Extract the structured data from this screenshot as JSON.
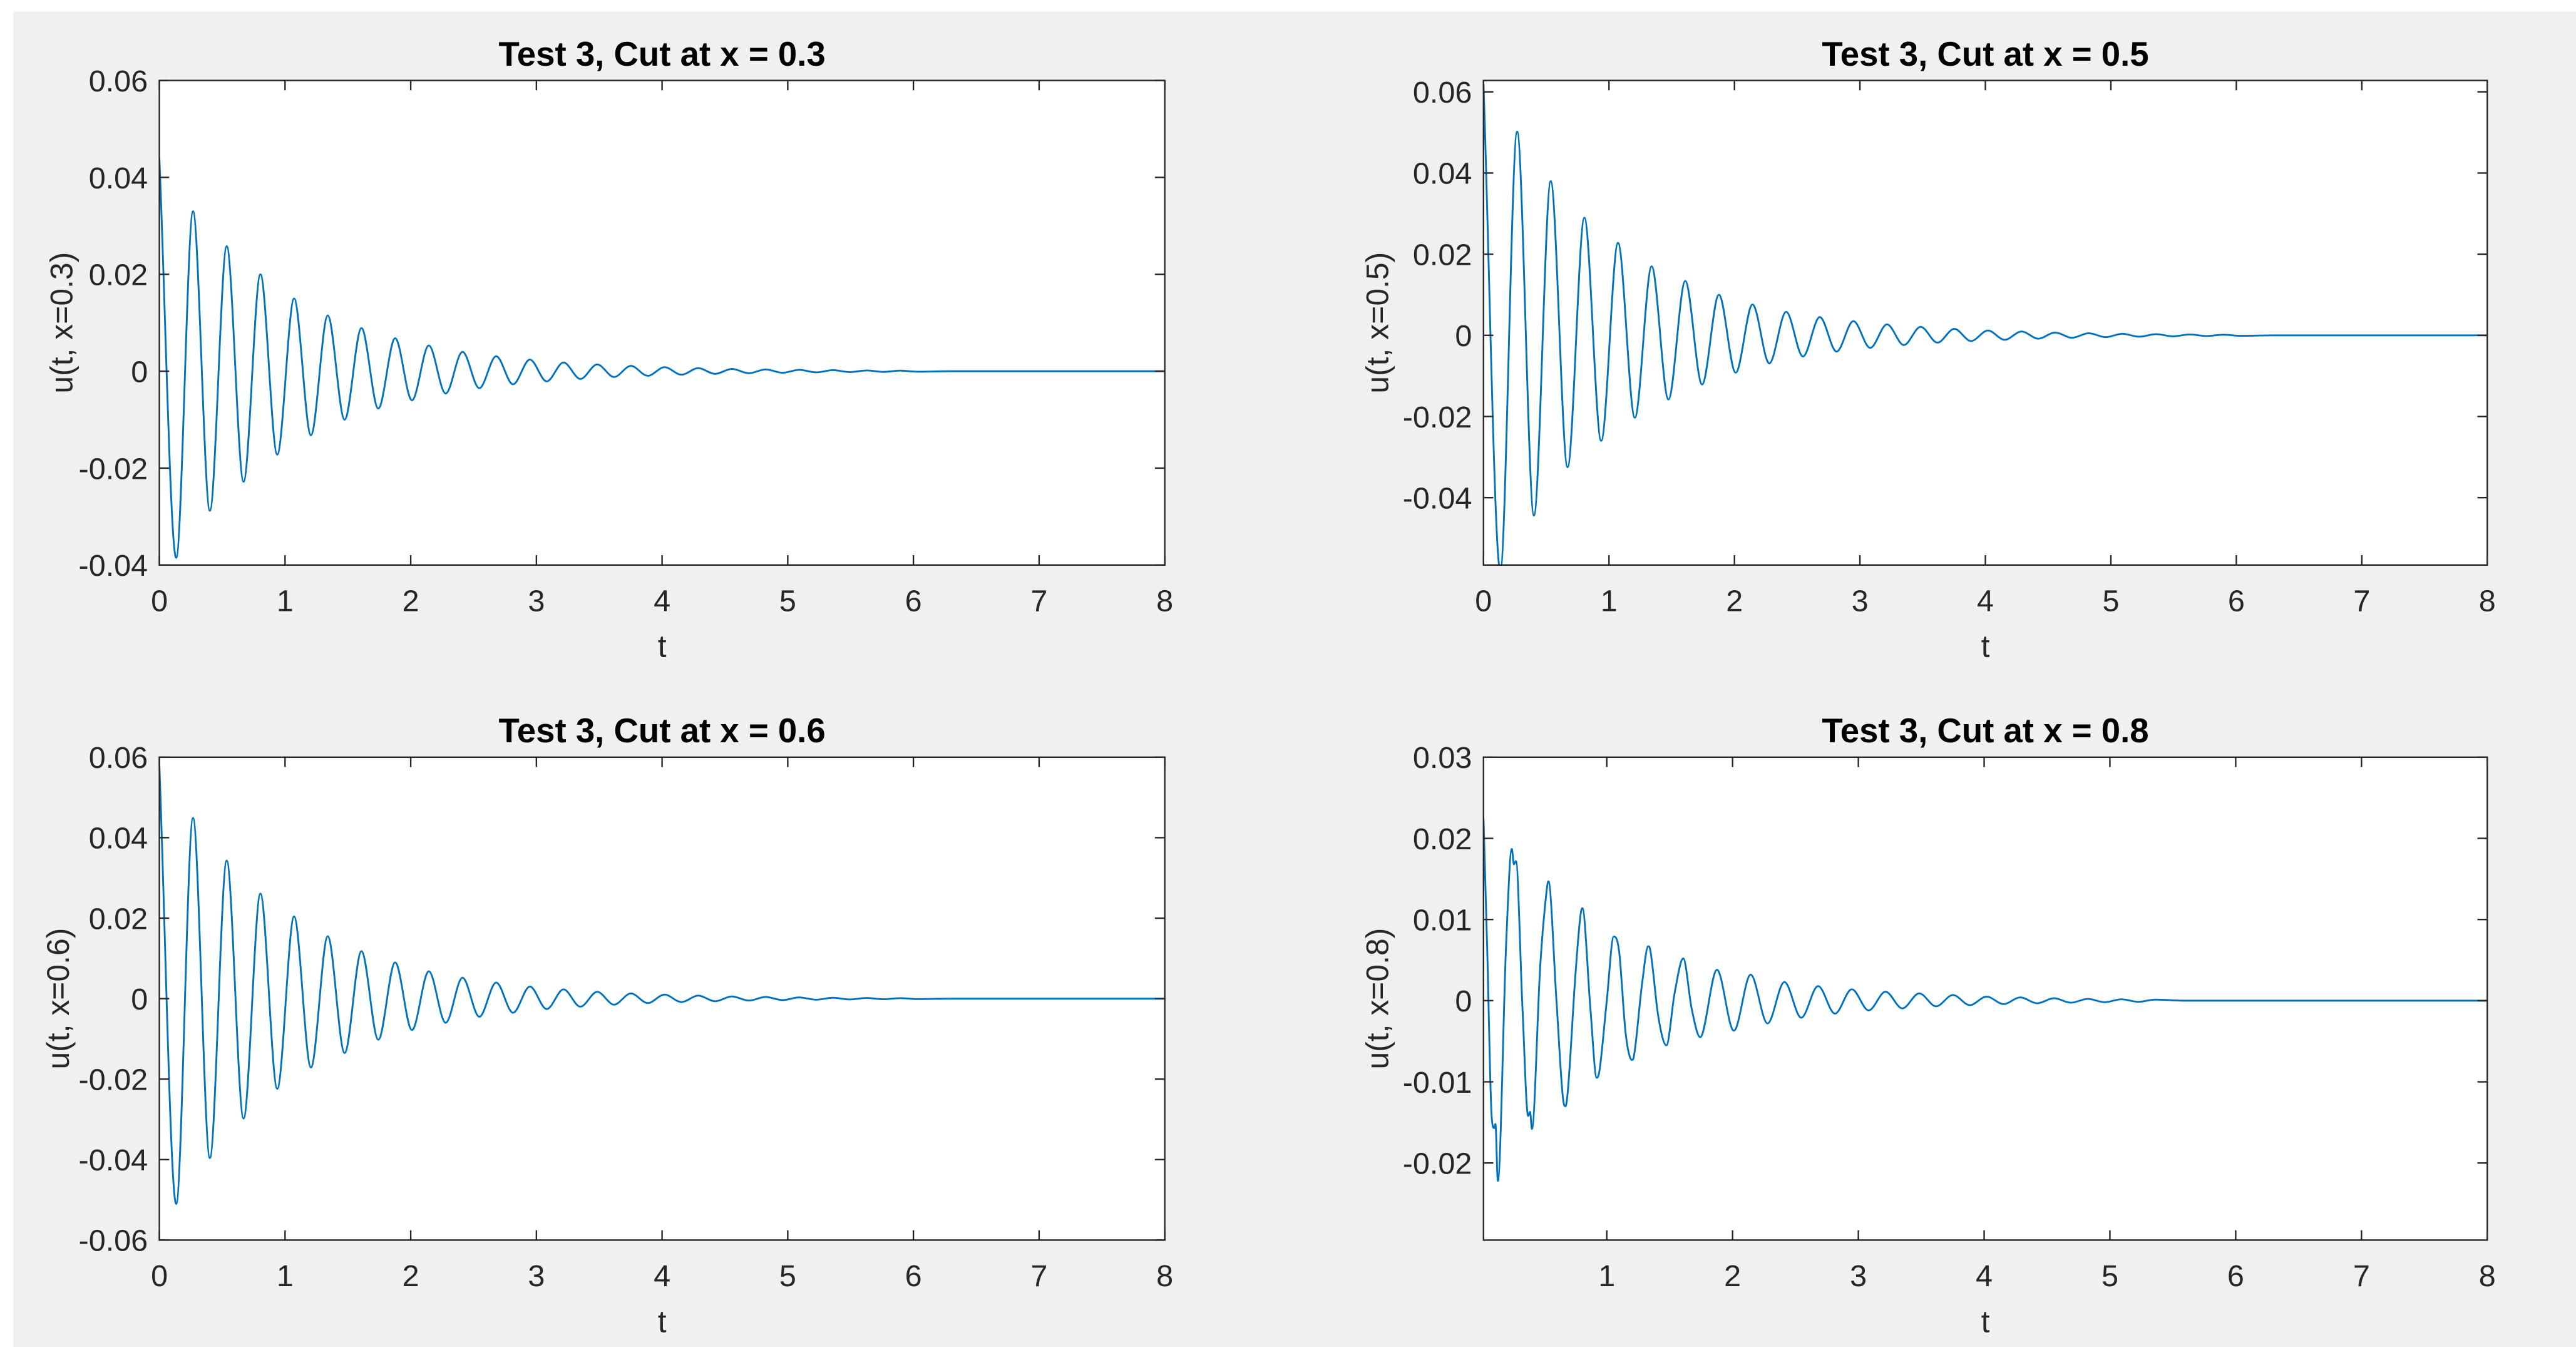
{
  "figure": {
    "background": "#f0f0f0",
    "axes_background": "#ffffff",
    "axes_color": "#262626"
  },
  "chart_data": [
    {
      "type": "line",
      "title": "Test 3, Cut at x = 0.3",
      "xlabel": "t",
      "ylabel": "u(t, x=0.3)",
      "xlim": [
        0,
        8
      ],
      "ylim": [
        -0.04,
        0.06
      ],
      "grid": false,
      "xticks": [
        0,
        1,
        2,
        3,
        4,
        5,
        6,
        7,
        8
      ],
      "xtick_labels": [
        "0",
        "1",
        "2",
        "3",
        "4",
        "5",
        "6",
        "7",
        "8"
      ],
      "yticks": [
        0.06,
        0.04,
        0.02,
        0,
        -0.02,
        -0.04
      ],
      "ytick_labels": [
        "0.06",
        "0.04",
        "0.02",
        "0",
        "-0.02",
        "-0.04"
      ],
      "series": [
        {
          "color": "#0072BD",
          "x": [
            0,
            0.134,
            0.268,
            0.402,
            0.536,
            0.67,
            0.804,
            0.938,
            1.072,
            1.206,
            1.34,
            1.474,
            1.608,
            1.742,
            1.876,
            2.01,
            2.144,
            2.278,
            2.412,
            2.546,
            2.68,
            2.814,
            2.948,
            3.082,
            3.216,
            3.35,
            3.484,
            3.618,
            3.752,
            3.886,
            4.02,
            4.154,
            4.288,
            4.422,
            4.556,
            4.69,
            4.824,
            4.958,
            5.092,
            5.226,
            5.36,
            5.494,
            5.628,
            5.762,
            5.896,
            6.03,
            6.3,
            8
          ],
          "y": [
            0.044,
            -0.0385,
            0.033,
            -0.0288,
            0.0258,
            -0.0228,
            0.02,
            -0.0172,
            0.015,
            -0.0132,
            0.0115,
            -0.01,
            0.0089,
            -0.0077,
            0.0068,
            -0.006,
            0.0053,
            -0.0046,
            0.004,
            -0.0035,
            0.0031,
            -0.0027,
            0.0024,
            -0.0021,
            0.0018,
            -0.0016,
            0.0014,
            -0.0012,
            0.0011,
            -0.00095,
            0.00083,
            -0.00072,
            0.00063,
            -0.00055,
            0.00048,
            -0.00042,
            0.00037,
            -0.00032,
            0.00028,
            -0.00024,
            0.00021,
            -0.00018,
            0.00016,
            -0.00014,
            0.00012,
            -0.0001,
            0,
            0
          ]
        }
      ]
    },
    {
      "type": "line",
      "title": "Test 3, Cut at x = 0.5",
      "xlabel": "t",
      "ylabel": "u(t, x=0.5)",
      "xlim": [
        0,
        8
      ],
      "ylim": [
        -0.0566,
        0.0628
      ],
      "grid": false,
      "xticks": [
        0,
        1,
        2,
        3,
        4,
        5,
        6,
        7,
        8
      ],
      "xtick_labels": [
        "0",
        "1",
        "2",
        "3",
        "4",
        "5",
        "6",
        "7",
        "8"
      ],
      "yticks": [
        0.06,
        0.04,
        0.02,
        0,
        -0.02,
        -0.04
      ],
      "ytick_labels": [
        "0.06",
        "0.04",
        "0.02",
        "0",
        "-0.02",
        "-0.04"
      ],
      "series": [
        {
          "color": "#0072BD",
          "x": [
            0,
            0.134,
            0.268,
            0.402,
            0.536,
            0.67,
            0.804,
            0.938,
            1.072,
            1.206,
            1.34,
            1.474,
            1.608,
            1.742,
            1.876,
            2.01,
            2.144,
            2.278,
            2.412,
            2.546,
            2.68,
            2.814,
            2.948,
            3.082,
            3.216,
            3.35,
            3.484,
            3.618,
            3.752,
            3.886,
            4.02,
            4.154,
            4.288,
            4.422,
            4.556,
            4.69,
            4.824,
            4.958,
            5.092,
            5.226,
            5.36,
            5.494,
            5.628,
            5.762,
            5.896,
            6.03,
            6.3,
            8
          ],
          "y": [
            0.062,
            -0.058,
            0.0502,
            -0.0444,
            0.038,
            -0.0325,
            0.029,
            -0.026,
            0.0228,
            -0.0203,
            0.017,
            -0.0158,
            0.0134,
            -0.0121,
            0.01,
            -0.0092,
            0.0076,
            -0.0069,
            0.0058,
            -0.0052,
            0.0045,
            -0.004,
            0.0035,
            -0.0031,
            0.0027,
            -0.0024,
            0.0021,
            -0.0018,
            0.0016,
            -0.0014,
            0.0012,
            -0.0011,
            0.00095,
            -0.00082,
            0.0007,
            -0.0006,
            0.00052,
            -0.00045,
            0.00039,
            -0.00033,
            0.00028,
            -0.00024,
            0.0002,
            -0.00017,
            0.00015,
            -0.00012,
            0,
            0
          ]
        }
      ]
    },
    {
      "type": "line",
      "title": "Test 3, Cut at x = 0.6",
      "xlabel": "t",
      "ylabel": "u(t, x=0.6)",
      "xlim": [
        0,
        8
      ],
      "ylim": [
        -0.06,
        0.06
      ],
      "grid": false,
      "xticks": [
        0,
        1,
        2,
        3,
        4,
        5,
        6,
        7,
        8
      ],
      "xtick_labels": [
        "0",
        "1",
        "2",
        "3",
        "4",
        "5",
        "6",
        "7",
        "8"
      ],
      "yticks": [
        0.06,
        0.04,
        0.02,
        0,
        -0.02,
        -0.04,
        -0.06
      ],
      "ytick_labels": [
        "0.06",
        "0.04",
        "0.02",
        "0",
        "-0.02",
        "-0.04",
        "-0.06"
      ],
      "series": [
        {
          "color": "#0072BD",
          "x": [
            0,
            0.134,
            0.268,
            0.402,
            0.536,
            0.67,
            0.804,
            0.938,
            1.072,
            1.206,
            1.34,
            1.474,
            1.608,
            1.742,
            1.876,
            2.01,
            2.144,
            2.278,
            2.412,
            2.546,
            2.68,
            2.814,
            2.948,
            3.082,
            3.216,
            3.35,
            3.484,
            3.618,
            3.752,
            3.886,
            4.02,
            4.154,
            4.288,
            4.422,
            4.556,
            4.69,
            4.824,
            4.958,
            5.092,
            5.226,
            5.36,
            5.494,
            5.628,
            5.762,
            5.896,
            6.03,
            6.3,
            8
          ],
          "y": [
            0.058,
            -0.051,
            0.0449,
            -0.0396,
            0.0343,
            -0.0298,
            0.0261,
            -0.0224,
            0.0204,
            -0.0171,
            0.0155,
            -0.0135,
            0.0118,
            -0.0102,
            0.009,
            -0.0078,
            0.0068,
            -0.006,
            0.0052,
            -0.0045,
            0.004,
            -0.0035,
            0.003,
            -0.0026,
            0.0023,
            -0.002,
            0.0017,
            -0.0015,
            0.0013,
            -0.0011,
            0.001,
            -0.00085,
            0.00075,
            -0.00065,
            0.00056,
            -0.00048,
            0.00042,
            -0.00036,
            0.00031,
            -0.00027,
            0.00023,
            -0.0002,
            0.00017,
            -0.00015,
            0.00013,
            -0.00011,
            0,
            0
          ]
        }
      ]
    },
    {
      "type": "line",
      "title": "Test 3, Cut at x = 0.8",
      "xlabel": "t",
      "ylabel": "u(t, x=0.8)",
      "xlim": [
        0.02,
        8
      ],
      "ylim": [
        -0.0295,
        0.03
      ],
      "grid": false,
      "xticks": [
        1,
        2,
        3,
        4,
        5,
        6,
        7,
        8
      ],
      "xtick_labels": [
        "1",
        "2",
        "3",
        "4",
        "5",
        "6",
        "7",
        "8"
      ],
      "yticks": [
        0.03,
        0.02,
        0.01,
        0,
        -0.01,
        -0.02
      ],
      "ytick_labels": [
        "0.03",
        "0.02",
        "0.01",
        "0",
        "-0.01",
        "-0.02"
      ],
      "series": [
        {
          "color": "#0072BD",
          "x": [
            0.02,
            0.05,
            0.085,
            0.105,
            0.115,
            0.134,
            0.2,
            0.245,
            0.262,
            0.278,
            0.33,
            0.375,
            0.39,
            0.405,
            0.47,
            0.512,
            0.536,
            0.6,
            0.655,
            0.672,
            0.69,
            0.75,
            0.79,
            0.806,
            0.87,
            0.92,
            0.94,
            1.0,
            1.055,
            1.075,
            1.1,
            1.15,
            1.2,
            1.215,
            1.28,
            1.33,
            1.345,
            1.41,
            1.474,
            1.54,
            1.608,
            1.675,
            1.742,
            1.876,
            2.01,
            2.144,
            2.278,
            2.412,
            2.546,
            2.68,
            2.814,
            2.948,
            3.082,
            3.216,
            3.35,
            3.484,
            3.618,
            3.752,
            3.886,
            4.02,
            4.154,
            4.288,
            4.422,
            4.556,
            4.69,
            4.824,
            4.958,
            5.092,
            5.226,
            5.36,
            5.6,
            8
          ],
          "y": [
            0.0225,
            0.006,
            -0.0143,
            -0.0157,
            -0.0152,
            -0.0222,
            0.007,
            0.0187,
            0.0168,
            0.0172,
            -0.001,
            -0.0142,
            -0.0137,
            -0.0158,
            0.004,
            0.0121,
            0.0147,
            0,
            -0.0124,
            -0.013,
            -0.0112,
            0.003,
            0.0104,
            0.0114,
            -0.001,
            -0.0095,
            -0.0088,
            0,
            0.0079,
            0.0077,
            0.0058,
            -0.004,
            -0.0073,
            -0.0069,
            0.002,
            0.0067,
            0.0063,
            -0.002,
            -0.0055,
            0.001,
            0.0052,
            -0.001,
            -0.0045,
            0.0038,
            -0.0037,
            0.0032,
            -0.0028,
            0.0023,
            -0.0021,
            0.0018,
            -0.0016,
            0.0014,
            -0.0012,
            0.0011,
            -0.00095,
            0.0009,
            -0.0007,
            0.0007,
            -0.00055,
            0.0005,
            -0.00042,
            0.0004,
            -0.00032,
            0.0003,
            -0.00025,
            0.00022,
            -0.00019,
            0.00017,
            -0.00014,
            0.00013,
            0,
            0
          ]
        }
      ]
    }
  ]
}
